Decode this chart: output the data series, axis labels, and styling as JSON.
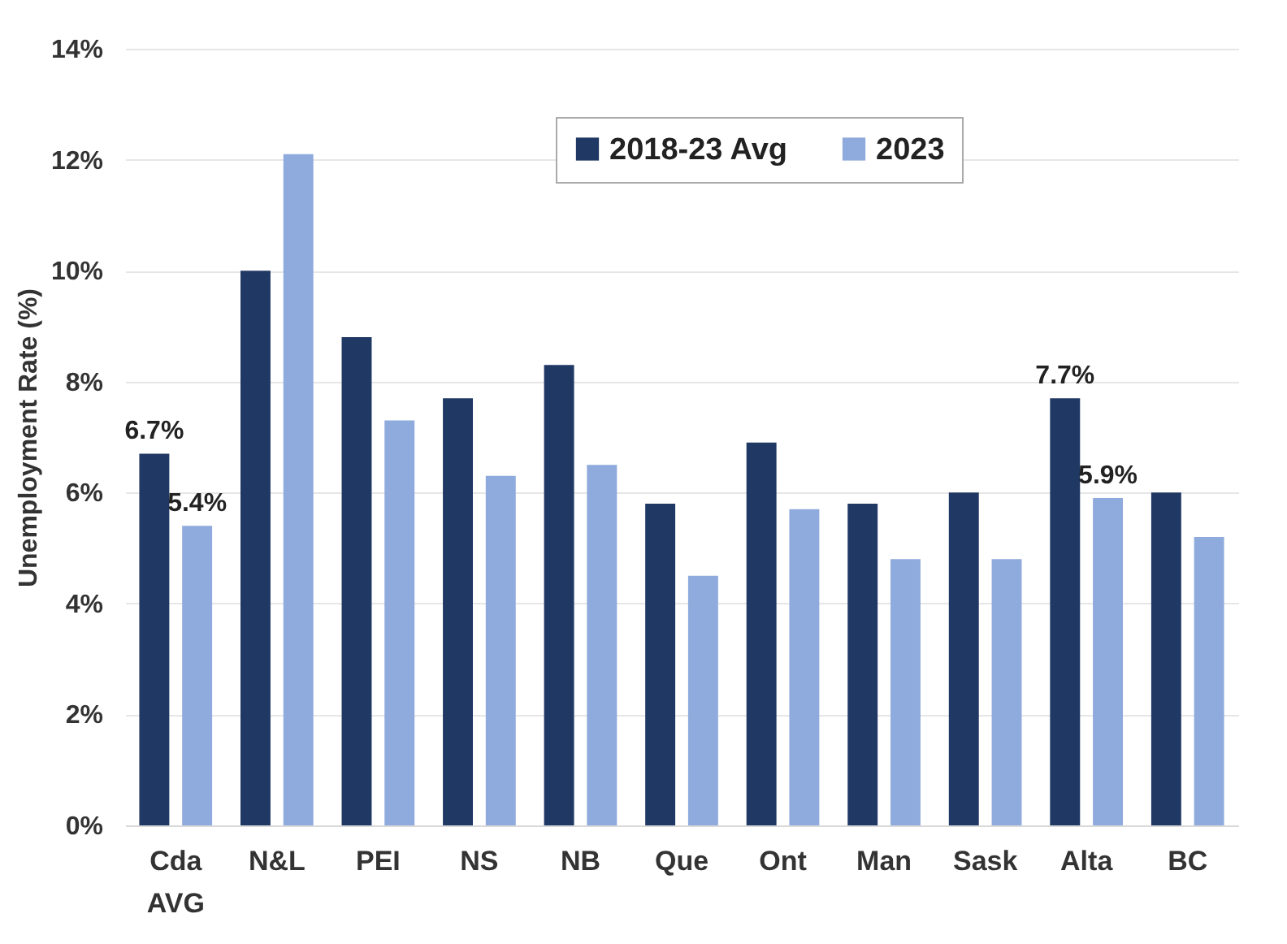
{
  "chart_data": {
    "type": "bar",
    "ylabel": "Unemployment Rate (%)",
    "categories": [
      "Cda AVG",
      "N&L",
      "PEI",
      "NS",
      "NB",
      "Que",
      "Ont",
      "Man",
      "Sask",
      "Alta",
      "BC"
    ],
    "series": [
      {
        "name": "2018-23 Avg",
        "color": "#203864",
        "values": [
          6.7,
          10.0,
          8.8,
          7.7,
          8.3,
          5.8,
          6.9,
          5.8,
          6.0,
          7.7,
          6.0
        ],
        "value_labels": [
          "6.7%",
          null,
          null,
          null,
          null,
          null,
          null,
          null,
          null,
          "7.7%",
          null
        ]
      },
      {
        "name": "2023",
        "color": "#8faadc",
        "values": [
          5.4,
          12.1,
          7.3,
          6.3,
          6.5,
          4.5,
          5.7,
          4.8,
          4.8,
          5.9,
          5.2
        ],
        "value_labels": [
          "5.4%",
          null,
          null,
          null,
          null,
          null,
          null,
          null,
          null,
          "5.9%",
          null
        ]
      }
    ],
    "ylim": [
      0,
      14
    ],
    "yticks": [
      {
        "value": 0,
        "label": "0%"
      },
      {
        "value": 2,
        "label": "2%"
      },
      {
        "value": 4,
        "label": "4%"
      },
      {
        "value": 6,
        "label": "6%"
      },
      {
        "value": 8,
        "label": "8%"
      },
      {
        "value": 10,
        "label": "10%"
      },
      {
        "value": 12,
        "label": "12%"
      },
      {
        "value": 14,
        "label": "14%"
      }
    ],
    "grid": "y",
    "legend": "top"
  }
}
